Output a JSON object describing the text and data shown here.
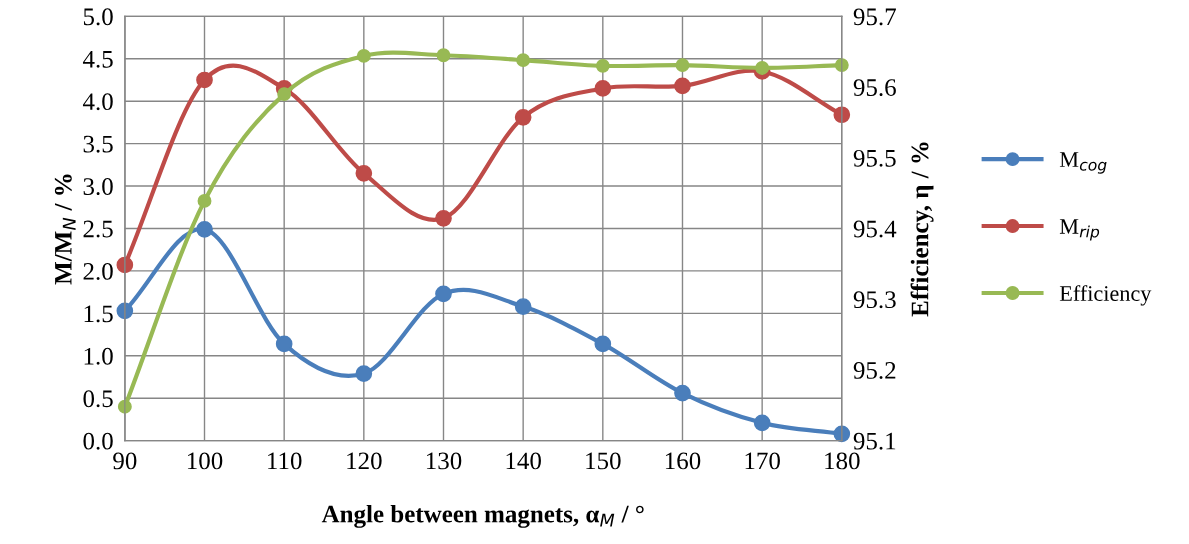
{
  "chart_data": {
    "type": "line",
    "xlabel": "Angle between magnets, α$_{M}$ / °",
    "ylabel": "M/M$_{N}$ / %",
    "y2label": "Efficiency, η / %",
    "x": [
      90,
      100,
      110,
      120,
      130,
      140,
      150,
      160,
      170,
      180
    ],
    "xlim": [
      90,
      180
    ],
    "xticks": [
      90,
      100,
      110,
      120,
      130,
      140,
      150,
      160,
      170,
      180
    ],
    "ylim": [
      0,
      5
    ],
    "yticks": [
      {
        "value": 0,
        "label": "0.0"
      },
      {
        "value": 0.5,
        "label": "0.5"
      },
      {
        "value": 1,
        "label": "1.0"
      },
      {
        "value": 1.5,
        "label": "1.5"
      },
      {
        "value": 2,
        "label": "2.0"
      },
      {
        "value": 2.5,
        "label": "2.5"
      },
      {
        "value": 3,
        "label": "3.0"
      },
      {
        "value": 3.5,
        "label": "3.5"
      },
      {
        "value": 4,
        "label": "4.0"
      },
      {
        "value": 4.5,
        "label": "4.5"
      },
      {
        "value": 5,
        "label": "5.0"
      }
    ],
    "y2lim": [
      95.1,
      95.7
    ],
    "y2ticks": [
      95.1,
      95.2,
      95.3,
      95.4,
      95.5,
      95.6,
      95.7
    ],
    "grid": true,
    "legend": "right",
    "marker": "circle",
    "line_style": "solid",
    "series": [
      {
        "name": "M$_{cog}$",
        "color": "#4a7ebb",
        "values": [
          1.53,
          2.49,
          1.14,
          0.79,
          1.73,
          1.58,
          1.14,
          0.56,
          0.21,
          0.08
        ]
      },
      {
        "name": "M$_{rip}$",
        "color": "#be4b48",
        "values": [
          2.07,
          4.25,
          4.15,
          3.15,
          2.62,
          3.81,
          4.15,
          4.18,
          4.35,
          3.84
        ]
      },
      {
        "name": "Efficiency",
        "color": "#98b954",
        "axis": "y2",
        "values": [
          95.148,
          95.439,
          95.59,
          95.644,
          95.645,
          95.638,
          95.63,
          95.631,
          95.627,
          95.631
        ]
      }
    ]
  }
}
